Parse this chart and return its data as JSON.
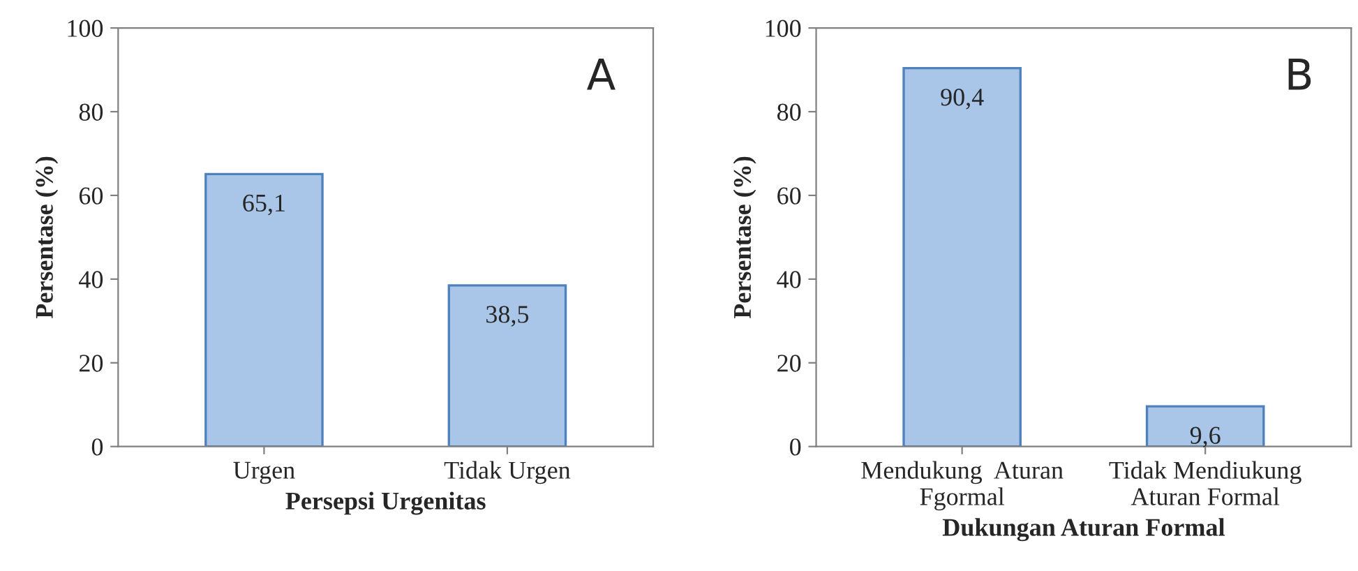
{
  "chart_data": [
    {
      "type": "bar",
      "categories": [
        "Urgen",
        "Tidak Urgen"
      ],
      "values": [
        65.1,
        38.5
      ],
      "value_labels": [
        "65,1",
        "38,5"
      ],
      "color": "#a9c5e8",
      "ylabel": "Persentase (%)",
      "xlabel": "Persepsi Urgenitas",
      "ylim": [
        0,
        100
      ],
      "yticks": [
        0,
        20,
        40,
        60,
        80,
        100
      ],
      "annotations": [
        "A"
      ],
      "grid": false,
      "legend": false
    },
    {
      "type": "bar",
      "categories": [
        "Mendukung  Aturan\nFgormal",
        "Tidak Mendiukung\nAturan Formal"
      ],
      "values": [
        90.4,
        9.6
      ],
      "value_labels": [
        "90,4",
        "9,6"
      ],
      "color": "#a9c5e8",
      "ylabel": "Persentase (%)",
      "xlabel": "Dukungan Aturan Formal",
      "ylim": [
        0,
        100
      ],
      "yticks": [
        0,
        20,
        40,
        60,
        80,
        100
      ],
      "annotations": [
        "B"
      ],
      "grid": false,
      "legend": false
    }
  ]
}
